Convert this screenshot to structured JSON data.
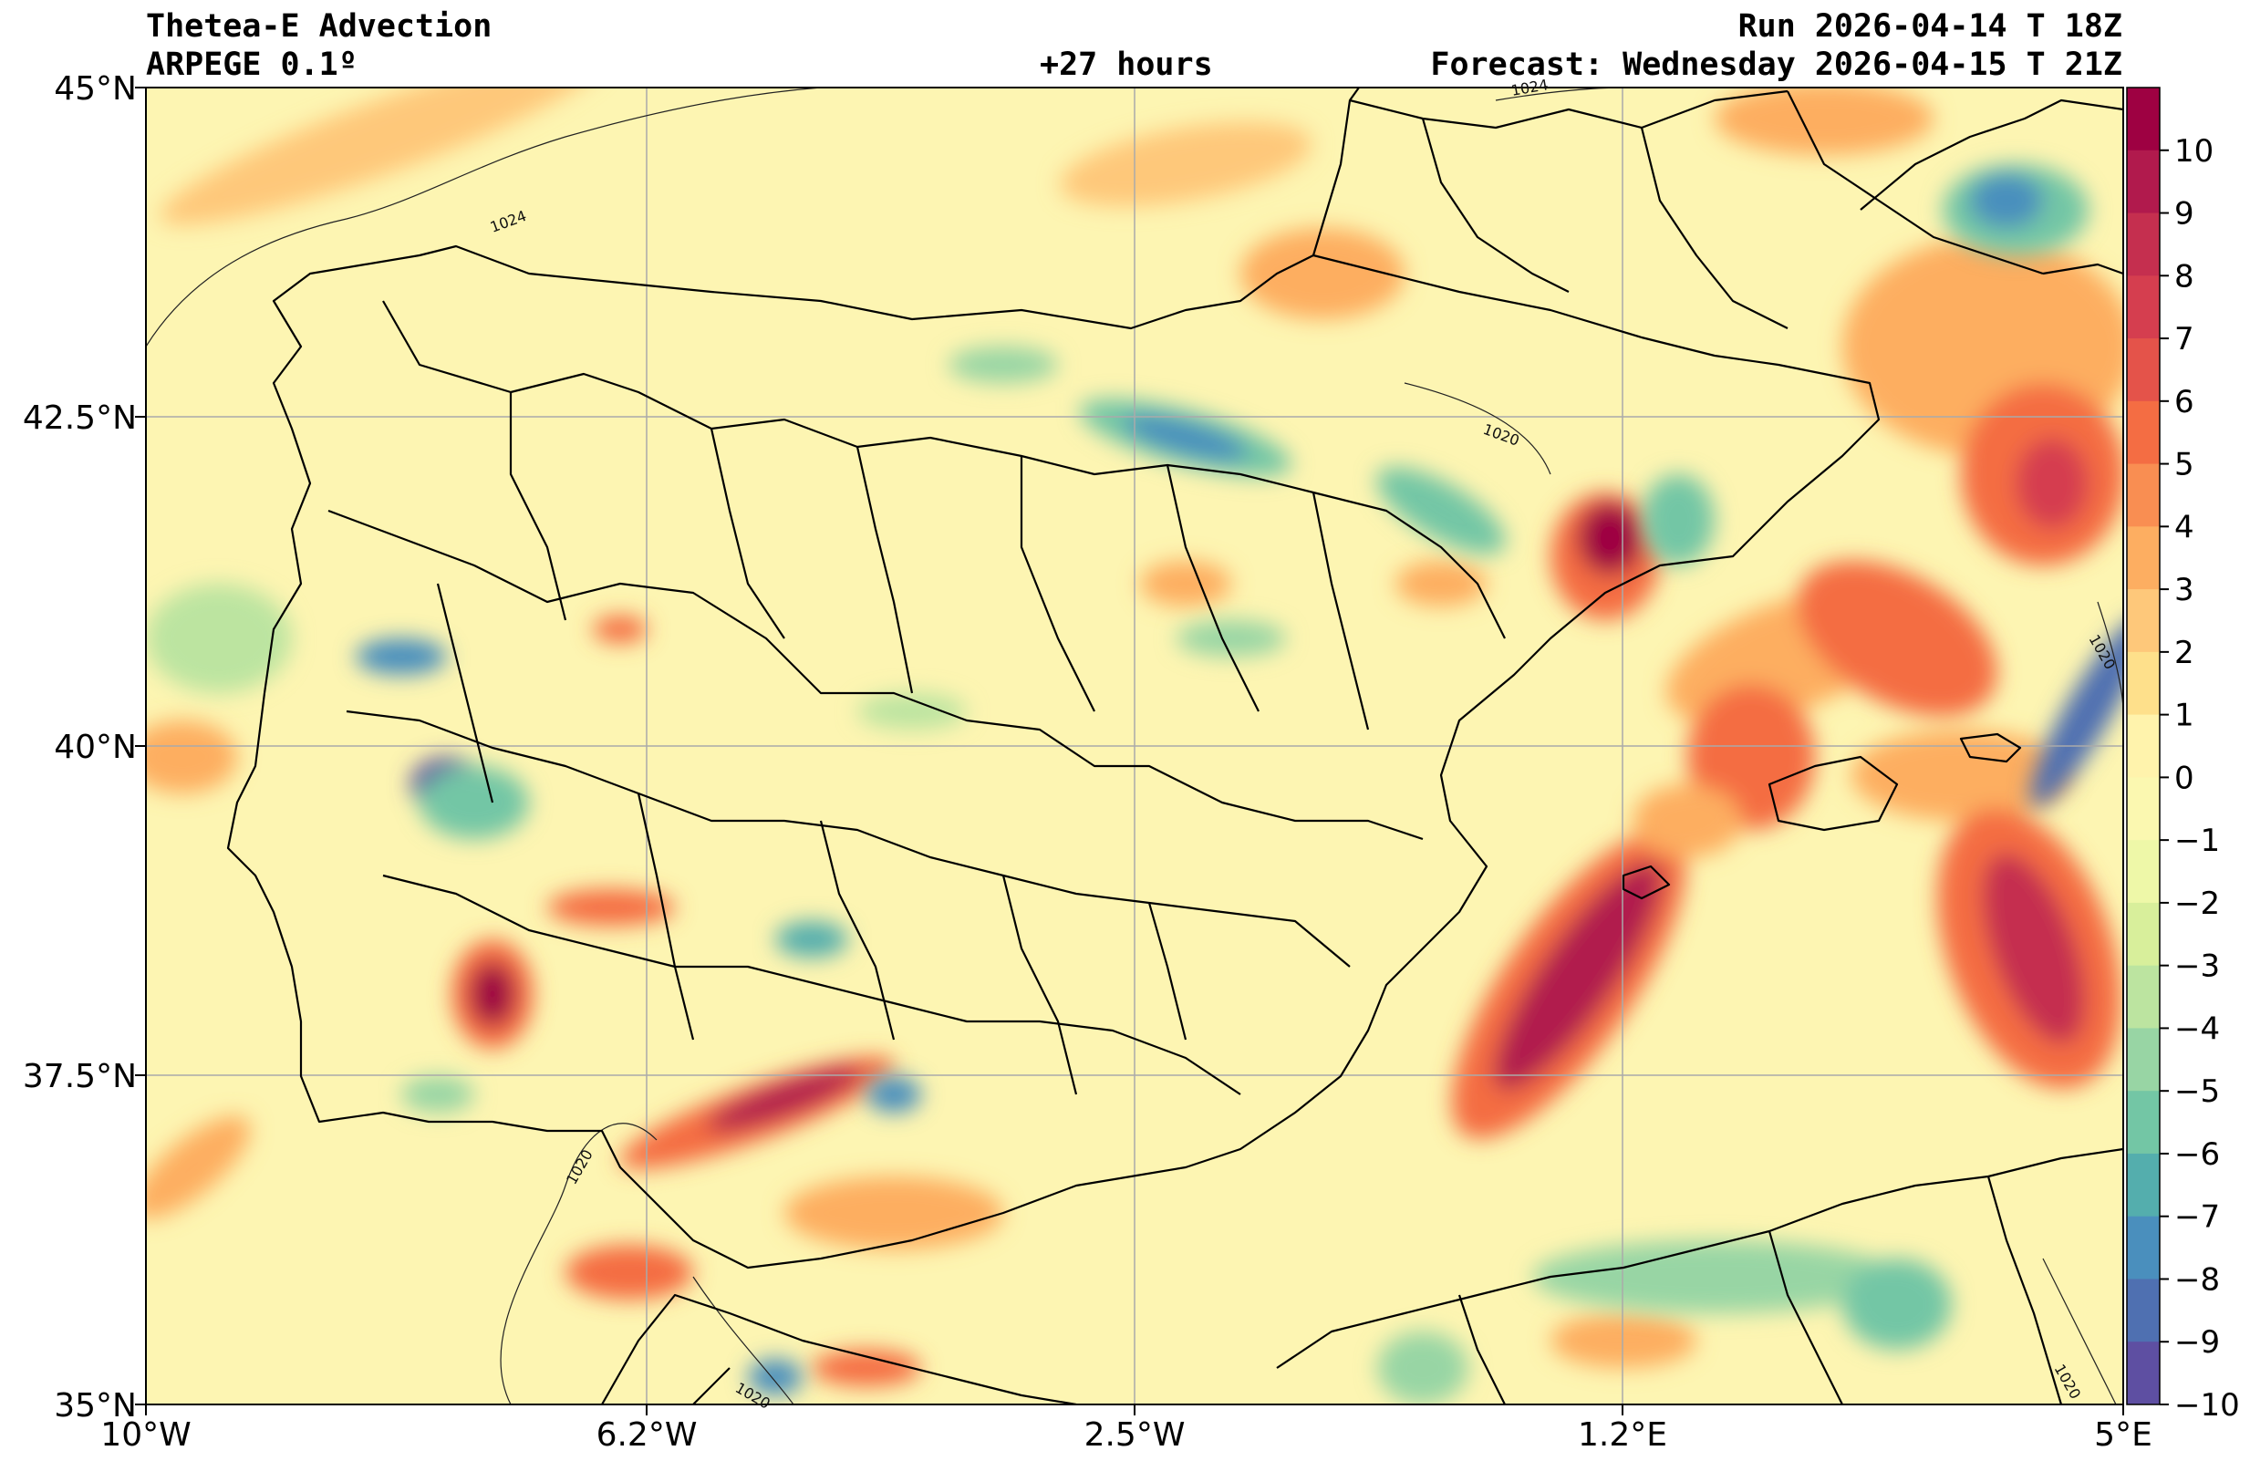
{
  "header": {
    "title": "Thetea-E Advection",
    "model": "ARPEGE 0.1º",
    "lead": "+27 hours",
    "run": "Run 2026-04-14 T 18Z",
    "forecast": "Forecast: Wednesday 2026-04-15 T 21Z"
  },
  "axes": {
    "lat_labels": [
      "45°N",
      "42.5°N",
      "40°N",
      "37.5°N",
      "35°N"
    ],
    "lon_labels": [
      "10°W",
      "6.2°W",
      "2.5°W",
      "1.2°E",
      "5°E"
    ]
  },
  "colorbar": {
    "labels": [
      "10",
      "9",
      "8",
      "7",
      "6",
      "5",
      "4",
      "3",
      "2",
      "1",
      "0",
      "−1",
      "−2",
      "−3",
      "−4",
      "−5",
      "−6",
      "−7",
      "−8",
      "−9",
      "−10"
    ],
    "colors": [
      "#9e0142",
      "#b11a4d",
      "#c52f4f",
      "#d53e4f",
      "#e4534a",
      "#f46d43",
      "#f98e52",
      "#fdae61",
      "#fec87a",
      "#fee08b",
      "#fff3ac",
      "#fbf8b0",
      "#eef8a8",
      "#d8ef9b",
      "#bce4a0",
      "#98d5a4",
      "#73c6a5",
      "#54aead",
      "#4a8fbd",
      "#4f70b1",
      "#5e4fa2"
    ]
  },
  "isobar_labels": [
    "1024",
    "1020",
    "1020",
    "1020",
    "1020",
    "1020",
    "1024"
  ],
  "colors": {
    "background_field": "#fdf5b2",
    "border": "#000000",
    "grid": "#aaaaaa",
    "isobar": "#222222"
  }
}
